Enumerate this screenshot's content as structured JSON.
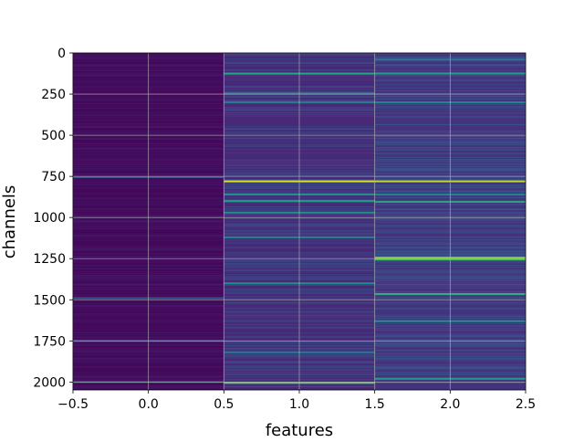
{
  "chart_data": {
    "type": "heatmap",
    "xlabel": "features",
    "ylabel": "channels",
    "x_ticks": [
      "−0.5",
      "0.0",
      "0.5",
      "1.0",
      "1.5",
      "2.0",
      "2.5"
    ],
    "y_ticks": [
      "0",
      "250",
      "500",
      "750",
      "1000",
      "1250",
      "1500",
      "1750",
      "2000"
    ],
    "xlim": [
      -0.5,
      2.5
    ],
    "ylim": [
      2048,
      0
    ],
    "n_channels": 2048,
    "features": [
      0,
      1,
      2
    ],
    "colormap": "viridis",
    "grid": true,
    "background_color": "#440154",
    "feature_base_level": [
      0.02,
      0.12,
      0.15
    ],
    "highlight_rows": [
      {
        "feature": 0,
        "channel": 755,
        "value": 0.25
      },
      {
        "feature": 0,
        "channel": 1490,
        "value": 0.25
      },
      {
        "feature": 0,
        "channel": 1750,
        "value": 0.22
      },
      {
        "feature": 0,
        "channel": 2000,
        "value": 0.28
      },
      {
        "feature": 1,
        "channel": 125,
        "value": 0.6
      },
      {
        "feature": 1,
        "channel": 245,
        "value": 0.4
      },
      {
        "feature": 1,
        "channel": 300,
        "value": 0.42
      },
      {
        "feature": 1,
        "channel": 780,
        "value": 0.95
      },
      {
        "feature": 1,
        "channel": 860,
        "value": 0.5
      },
      {
        "feature": 1,
        "channel": 900,
        "value": 0.55
      },
      {
        "feature": 1,
        "channel": 970,
        "value": 0.5
      },
      {
        "feature": 1,
        "channel": 1120,
        "value": 0.45
      },
      {
        "feature": 1,
        "channel": 1400,
        "value": 0.5
      },
      {
        "feature": 1,
        "channel": 1820,
        "value": 0.38
      },
      {
        "feature": 1,
        "channel": 2005,
        "value": 0.75
      },
      {
        "feature": 2,
        "channel": 40,
        "value": 0.4
      },
      {
        "feature": 2,
        "channel": 125,
        "value": 0.55
      },
      {
        "feature": 2,
        "channel": 300,
        "value": 0.45
      },
      {
        "feature": 2,
        "channel": 780,
        "value": 0.9
      },
      {
        "feature": 2,
        "channel": 860,
        "value": 0.45
      },
      {
        "feature": 2,
        "channel": 905,
        "value": 0.6
      },
      {
        "feature": 2,
        "channel": 1245,
        "value": 0.85
      },
      {
        "feature": 2,
        "channel": 1255,
        "value": 0.7
      },
      {
        "feature": 2,
        "channel": 1465,
        "value": 0.65
      },
      {
        "feature": 2,
        "channel": 1630,
        "value": 0.5
      },
      {
        "feature": 2,
        "channel": 1980,
        "value": 0.55
      }
    ]
  }
}
